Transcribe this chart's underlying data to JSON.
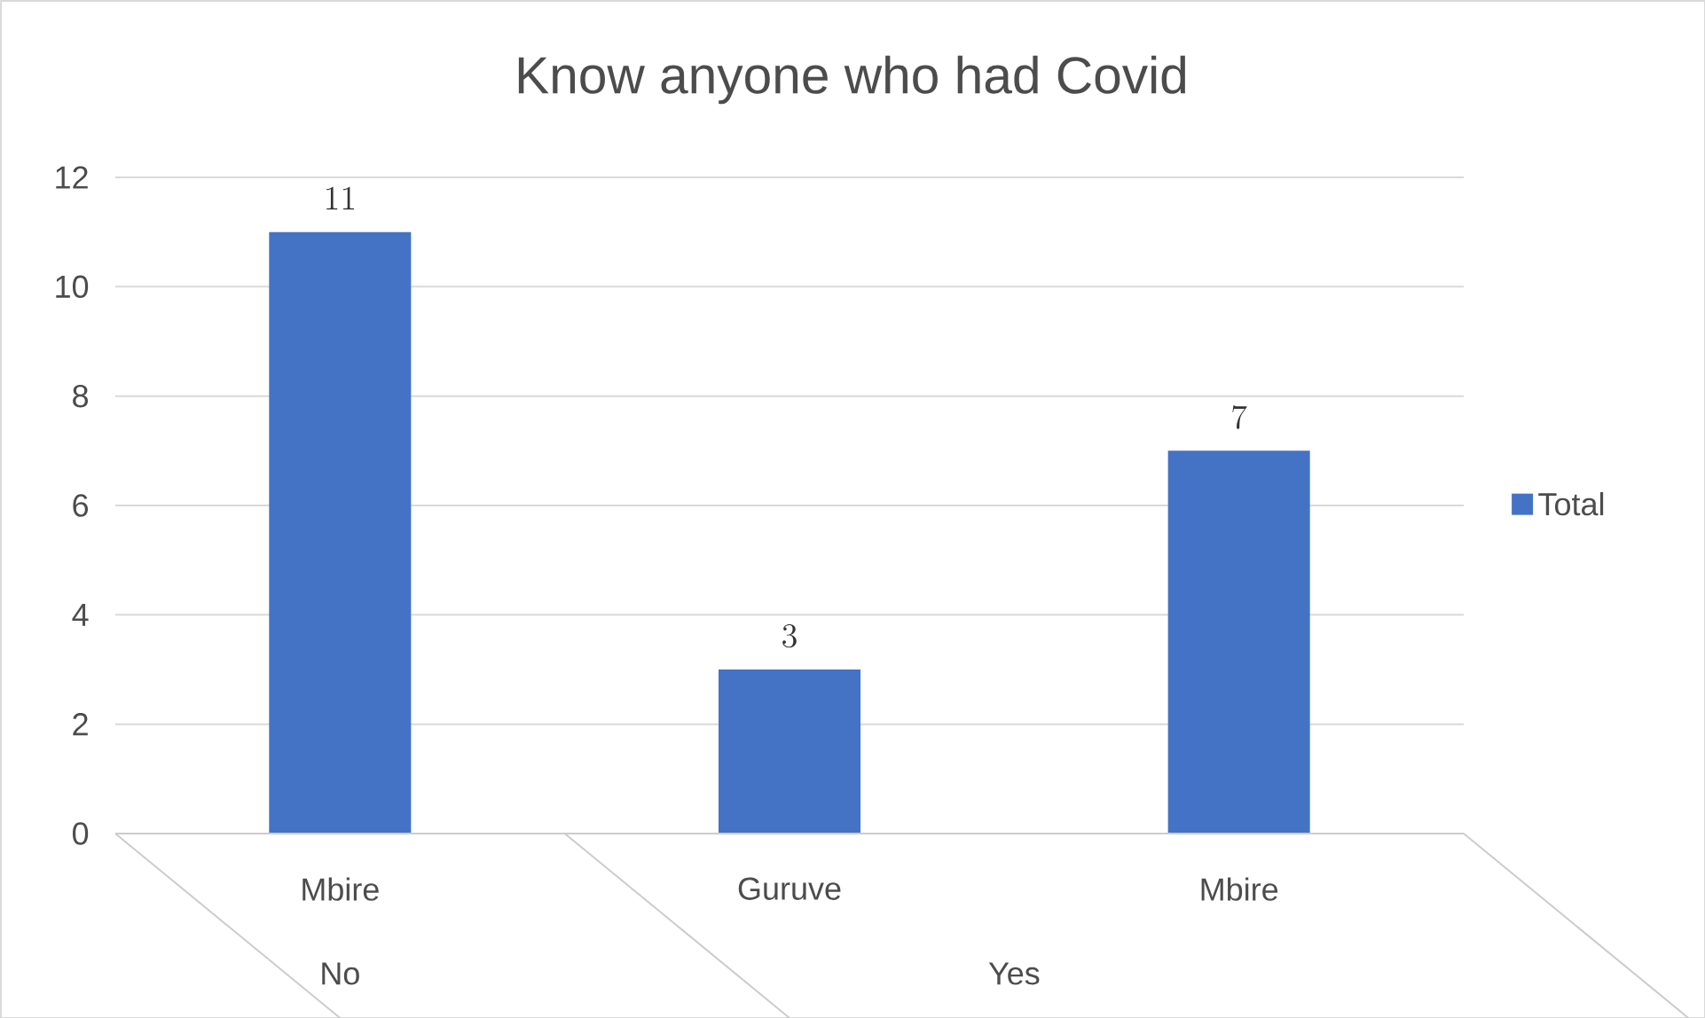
{
  "chart_data": {
    "type": "bar",
    "title": "Know anyone who had Covid",
    "categories": [
      "Mbire",
      "Guruve",
      "Mbire"
    ],
    "annotations": [
      "No",
      "Yes"
    ],
    "series": [
      {
        "name": "Total",
        "color": "#4472c4",
        "values": [
          11,
          3,
          7
        ]
      }
    ],
    "ylim": [
      0,
      12
    ],
    "yticks": [
      0,
      2,
      4,
      6,
      8,
      10,
      12
    ],
    "grid": "y",
    "legend": "right",
    "data_labels": true
  }
}
